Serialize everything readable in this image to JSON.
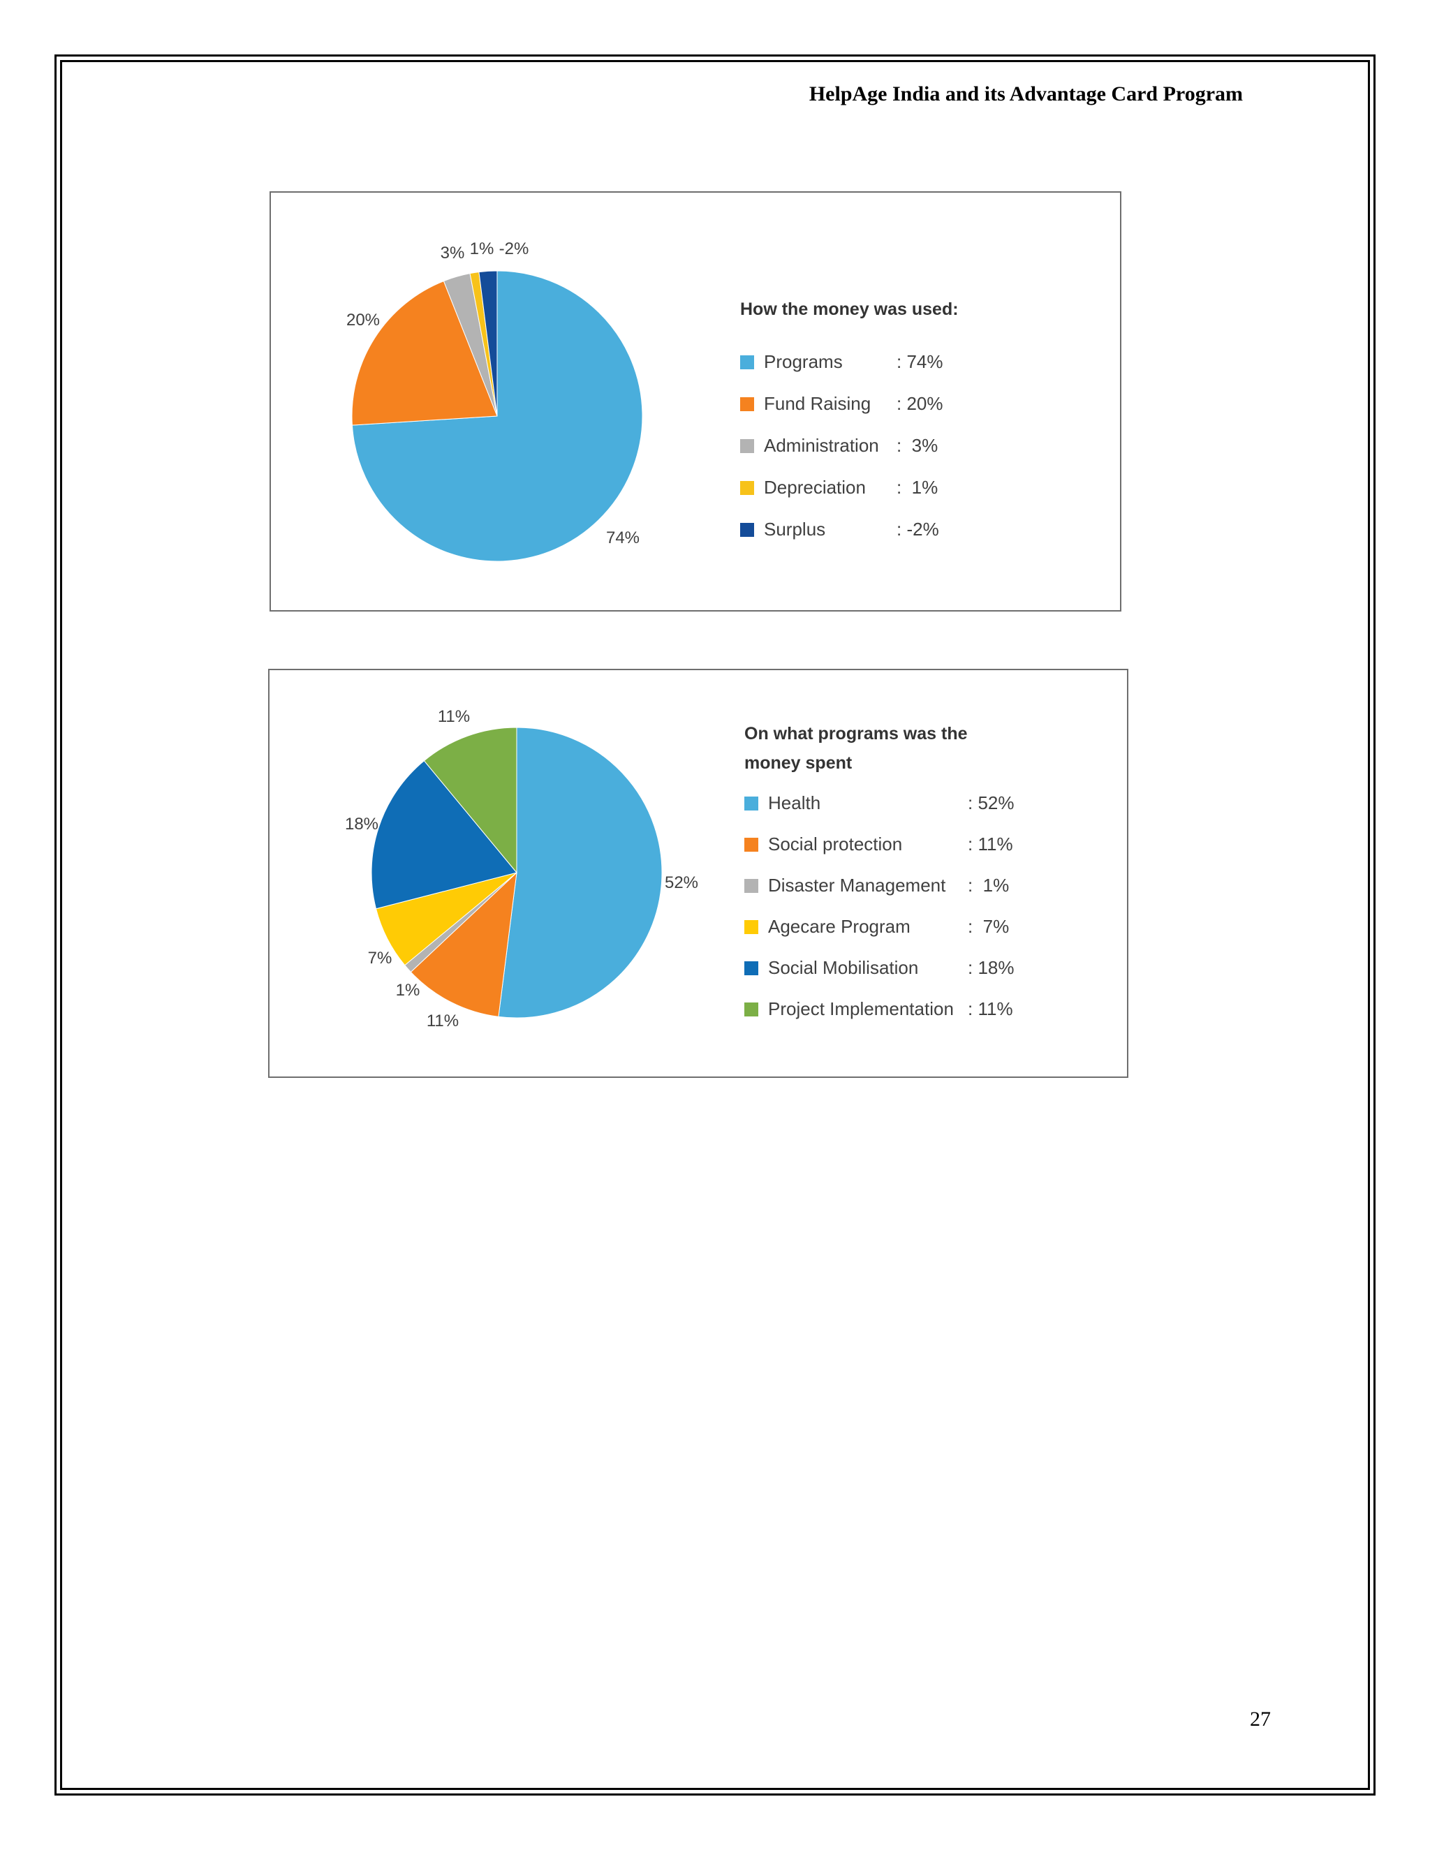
{
  "page": {
    "header": "HelpAge India and its Advantage Card Program",
    "page_number": "27"
  },
  "chart_data": [
    {
      "type": "pie",
      "title": "How the money was used:",
      "categories": [
        "Programs",
        "Fund Raising",
        "Administration",
        "Depreciation",
        "Surplus"
      ],
      "values": [
        74,
        20,
        3,
        1,
        -2
      ],
      "slice_labels": [
        "74%",
        "20%",
        "3%",
        "1%",
        "-2%"
      ],
      "legend_values": [
        ": 74%",
        ": 20%",
        ":  3%",
        ":  1%",
        ": -2%"
      ],
      "colors": [
        "#4aaedc",
        "#f5821f",
        "#b3b3b3",
        "#f7c21a",
        "#144c99"
      ],
      "legend": "right"
    },
    {
      "type": "pie",
      "title": "On what programs was the money spent",
      "categories": [
        "Health",
        "Social protection",
        "Disaster Management",
        "Agecare Program",
        "Social Mobilisation",
        "Project Implementation"
      ],
      "values": [
        52,
        11,
        1,
        7,
        18,
        11
      ],
      "slice_labels": [
        "52%",
        "11%",
        "1%",
        "7%",
        "18%",
        "11%"
      ],
      "legend_values": [
        ": 52%",
        ": 11%",
        ":  1%",
        ":  7%",
        ": 18%",
        ": 11%"
      ],
      "colors": [
        "#4aaedc",
        "#f5821f",
        "#b3b3b3",
        "#ffcb05",
        "#0f6db6",
        "#7caf46"
      ],
      "legend": "right"
    }
  ]
}
